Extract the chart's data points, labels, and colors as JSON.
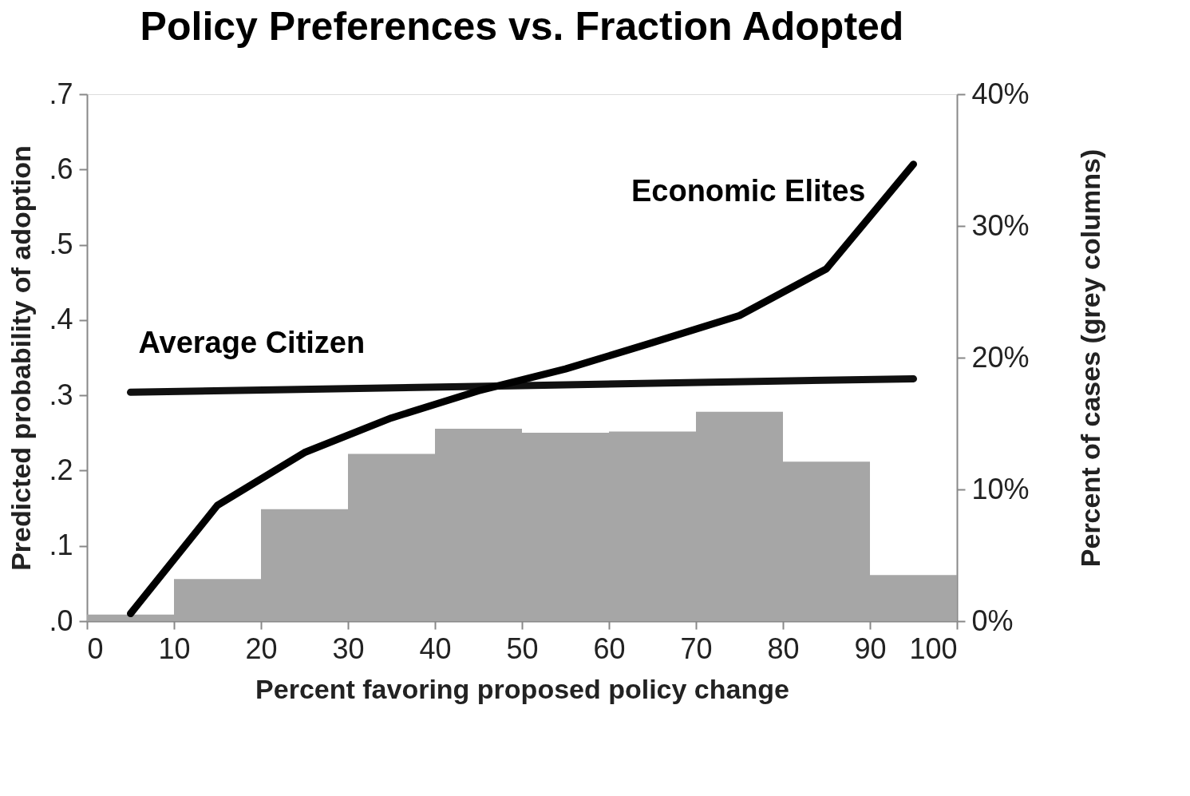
{
  "chart_data": {
    "type": "line",
    "title": "Policy Preferences vs. Fraction Adopted",
    "xlabel": "Percent favoring proposed policy change",
    "ylabel": "Predicted probability of adoption",
    "y2label": "Percent of cases (grey columns)",
    "xlim": [
      0,
      100
    ],
    "xticks": [
      0,
      10,
      20,
      30,
      40,
      50,
      60,
      70,
      80,
      90,
      100
    ],
    "ylim": [
      0,
      0.7
    ],
    "yticks": [
      {
        "value": 0,
        "label": ".0"
      },
      {
        "value": 0.1,
        "label": ".1"
      },
      {
        "value": 0.2,
        "label": ".2"
      },
      {
        "value": 0.3,
        "label": ".3"
      },
      {
        "value": 0.4,
        "label": ".4"
      },
      {
        "value": 0.5,
        "label": ".5"
      },
      {
        "value": 0.6,
        "label": ".6"
      },
      {
        "value": 0.7,
        "label": ".7"
      }
    ],
    "y2lim": [
      0,
      40
    ],
    "y2ticks": [
      {
        "value": 0,
        "label": "0%"
      },
      {
        "value": 10,
        "label": "10%"
      },
      {
        "value": 20,
        "label": "20%"
      },
      {
        "value": 30,
        "label": "30%"
      },
      {
        "value": 40,
        "label": "40%"
      }
    ],
    "series": [
      {
        "type": "histogram",
        "axis": "y2",
        "color": "#a6a6a6",
        "bins": [
          0,
          10,
          20,
          30,
          40,
          50,
          60,
          70,
          80,
          90,
          100
        ],
        "values": [
          0.5,
          3.2,
          8.5,
          12.7,
          14.6,
          14.3,
          14.4,
          15.9,
          12.1,
          3.5
        ]
      },
      {
        "type": "line",
        "name": "Average Citizen",
        "color": "#111111",
        "x": [
          5,
          50,
          95
        ],
        "values": [
          0.304,
          0.313,
          0.322
        ]
      },
      {
        "type": "line",
        "name": "Economic Elites",
        "color": "#000000",
        "x": [
          5,
          15,
          25,
          35,
          45,
          55,
          65,
          75,
          85,
          95
        ],
        "values": [
          0.01,
          0.154,
          0.224,
          0.27,
          0.306,
          0.335,
          0.37,
          0.406,
          0.468,
          0.607
        ]
      }
    ],
    "line_style": "solid"
  }
}
